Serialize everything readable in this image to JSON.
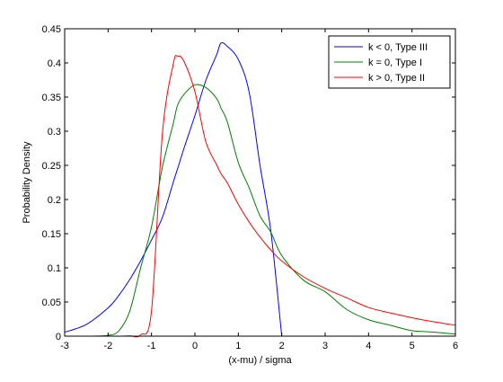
{
  "chart_data": {
    "type": "line",
    "title": "",
    "xlabel": "(x-mu) / sigma",
    "ylabel": "Probability Density",
    "xlim": [
      -3,
      6
    ],
    "ylim": [
      0,
      0.45
    ],
    "xticks": [
      -3,
      -2,
      -1,
      0,
      1,
      2,
      3,
      4,
      5,
      6
    ],
    "yticks": [
      0,
      0.05,
      0.1,
      0.15,
      0.2,
      0.25,
      0.3,
      0.35,
      0.4,
      0.45
    ],
    "xtick_labels": [
      "-3",
      "-2",
      "-1",
      "0",
      "1",
      "2",
      "3",
      "4",
      "5",
      "6"
    ],
    "ytick_labels": [
      "0",
      "0.05",
      "0.1",
      "0.15",
      "0.2",
      "0.25",
      "0.3",
      "0.35",
      "0.4",
      "0.45"
    ],
    "grid": false,
    "legend_position": "top-right",
    "x": [
      -3,
      -2.5,
      -2,
      -1.75,
      -1.5,
      -1.25,
      -1,
      -0.75,
      -0.5,
      -0.4,
      -0.25,
      0,
      0.25,
      0.5,
      0.6,
      0.75,
      1,
      1.25,
      1.5,
      1.75,
      2,
      2.5,
      3,
      3.5,
      4,
      4.5,
      5,
      5.5,
      6
    ],
    "series": [
      {
        "name": "k < 0, Type III",
        "color": "#0000ff",
        "values": [
          0.0058,
          0.0172,
          0.0414,
          0.0599,
          0.083,
          0.1103,
          0.1409,
          0.1737,
          0.225,
          0.245,
          0.2753,
          0.323,
          0.374,
          0.412,
          0.429,
          0.424,
          0.405,
          0.357,
          0.25,
          0.153,
          0.0,
          null,
          null,
          null,
          null,
          null,
          null,
          null,
          null
        ]
      },
      {
        "name": "k = 0, Type I",
        "color": "#008000",
        "values": [
          0.0,
          0.0,
          0.0012,
          0.008,
          0.0368,
          0.1,
          0.16,
          0.247,
          0.311,
          0.338,
          0.354,
          0.368,
          0.364,
          0.348,
          0.334,
          0.313,
          0.254,
          0.217,
          0.176,
          0.152,
          0.118,
          0.082,
          0.065,
          0.039,
          0.024,
          0.016,
          0.008,
          0.006,
          0.003
        ]
      },
      {
        "name": "k > 0, Type II",
        "color": "#ff0000",
        "values": [
          0.0,
          0.0,
          0.0,
          0.0,
          0.0005,
          0.002,
          0.037,
          0.296,
          0.398,
          0.41,
          0.402,
          0.358,
          0.285,
          0.251,
          0.238,
          0.224,
          0.193,
          0.167,
          0.145,
          0.126,
          0.11,
          0.087,
          0.07,
          0.056,
          0.042,
          0.034,
          0.027,
          0.021,
          0.016
        ]
      }
    ]
  }
}
